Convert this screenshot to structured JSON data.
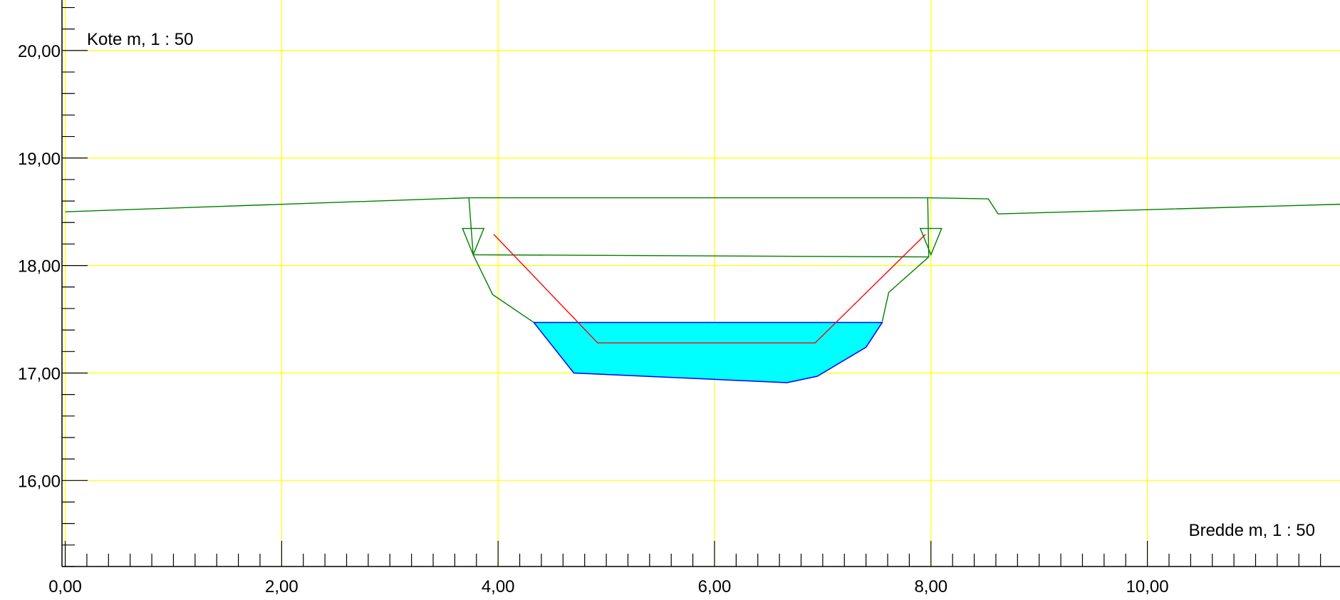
{
  "chart_data": {
    "type": "line",
    "title": "",
    "ylabel": "Kote m, 1 : 50",
    "xlabel": "Bredde m, 1 : 50",
    "xlim": [
      -0.03,
      11.78
    ],
    "ylim": [
      15.2,
      20.47
    ],
    "x_ticks": [
      {
        "value": 0,
        "label": "0,00"
      },
      {
        "value": 2,
        "label": "2,00"
      },
      {
        "value": 4,
        "label": "4,00"
      },
      {
        "value": 6,
        "label": "6,00"
      },
      {
        "value": 8,
        "label": "8,00"
      },
      {
        "value": 10,
        "label": "10,00"
      }
    ],
    "y_ticks": [
      {
        "value": 16,
        "label": "16,00"
      },
      {
        "value": 17,
        "label": "17,00"
      },
      {
        "value": 18,
        "label": "18,00"
      },
      {
        "value": 19,
        "label": "19,00"
      },
      {
        "value": 20,
        "label": "20,00"
      }
    ],
    "grid": true,
    "colors": {
      "grid": "#ffff00",
      "terrain": "#008000",
      "water_fill": "#00ffff",
      "water_edge": "#0000ff",
      "design": "#ff0000",
      "axis": "#000000"
    },
    "series": [
      {
        "x": [
          0.0,
          3.73,
          7.97,
          8.53,
          8.62,
          11.78
        ],
        "y": [
          18.5,
          18.63,
          18.63,
          18.62,
          18.48,
          18.57
        ]
      },
      {
        "x": [
          3.73,
          3.77,
          3.95,
          4.33
        ],
        "y": [
          18.63,
          18.1,
          17.73,
          17.47
        ]
      },
      {
        "x": [
          3.77,
          7.98
        ],
        "y": [
          18.1,
          18.08
        ]
      },
      {
        "x": [
          7.97,
          7.98,
          7.61,
          7.55
        ],
        "y": [
          18.63,
          18.08,
          17.75,
          17.48
        ]
      },
      {
        "x": [
          3.96,
          4.92,
          6.93,
          7.95
        ],
        "y": [
          18.29,
          17.28,
          17.28,
          18.29
        ]
      }
    ],
    "water": {
      "polygon_x": [
        4.33,
        7.55,
        7.4,
        6.95,
        6.67,
        4.7
      ],
      "polygon_y": [
        17.47,
        17.47,
        17.24,
        16.97,
        16.91,
        17.0
      ]
    },
    "water_level_markers": [
      {
        "x": 3.77,
        "y": 18.1
      },
      {
        "x": 8.0,
        "y": 18.1
      }
    ]
  }
}
